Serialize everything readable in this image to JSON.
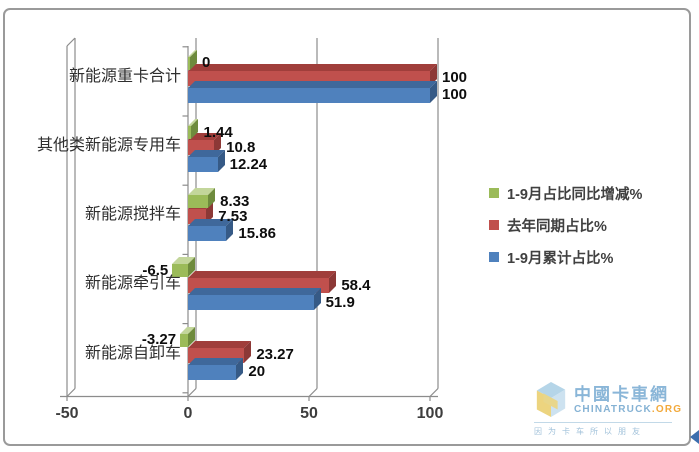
{
  "chart_data": {
    "type": "bar",
    "orientation": "horizontal",
    "style": "3d",
    "title": "",
    "categories": [
      "新能源重卡合计",
      "其他类新能源专用车",
      "新能源搅拌车",
      "新能源牵引车",
      "新能源自卸车"
    ],
    "series": [
      {
        "name": "1-9月占比同比增减%",
        "color": "#9BBB59",
        "color_top": "#C3D69B",
        "color_side": "#6E8B3D",
        "values": [
          0,
          1.44,
          8.33,
          -6.5,
          -3.27
        ],
        "labels": [
          "0",
          "1.44",
          "8.33",
          "-6.5",
          "-3.27"
        ]
      },
      {
        "name": "去年同期占比%",
        "color": "#C0504D",
        "color_top": "#A03E3B",
        "color_side": "#8C3836",
        "values": [
          100,
          10.8,
          7.53,
          58.4,
          23.27
        ],
        "labels": [
          "100",
          "10.8",
          "7.53",
          "58.4",
          "23.27"
        ]
      },
      {
        "name": "1-9月累计占比%",
        "color": "#4F81BD",
        "color_top": "#3F689B",
        "color_side": "#365A86",
        "values": [
          100,
          12.24,
          15.86,
          51.9,
          20
        ],
        "labels": [
          "100",
          "12.24",
          "15.86",
          "51.9",
          "20"
        ]
      }
    ],
    "x_ticks": [
      -50,
      0,
      50,
      100
    ],
    "x_tick_labels": [
      "-50",
      "0",
      "50",
      "100"
    ],
    "xlim": [
      -50,
      100
    ],
    "grid": true,
    "legend_position": "center-right"
  },
  "watermark": {
    "title": "中國卡車網",
    "site": "CHINATRUCK",
    "site_suffix": ".ORG",
    "tagline": "因为卡车所以朋友"
  },
  "colors": {
    "frame_border": "#9a9a9a",
    "axis_line": "#8c8c8c",
    "category_text": "#2f2f2f",
    "value_text": "#0d0d0d",
    "corner_arrow": "#3c6eae"
  }
}
